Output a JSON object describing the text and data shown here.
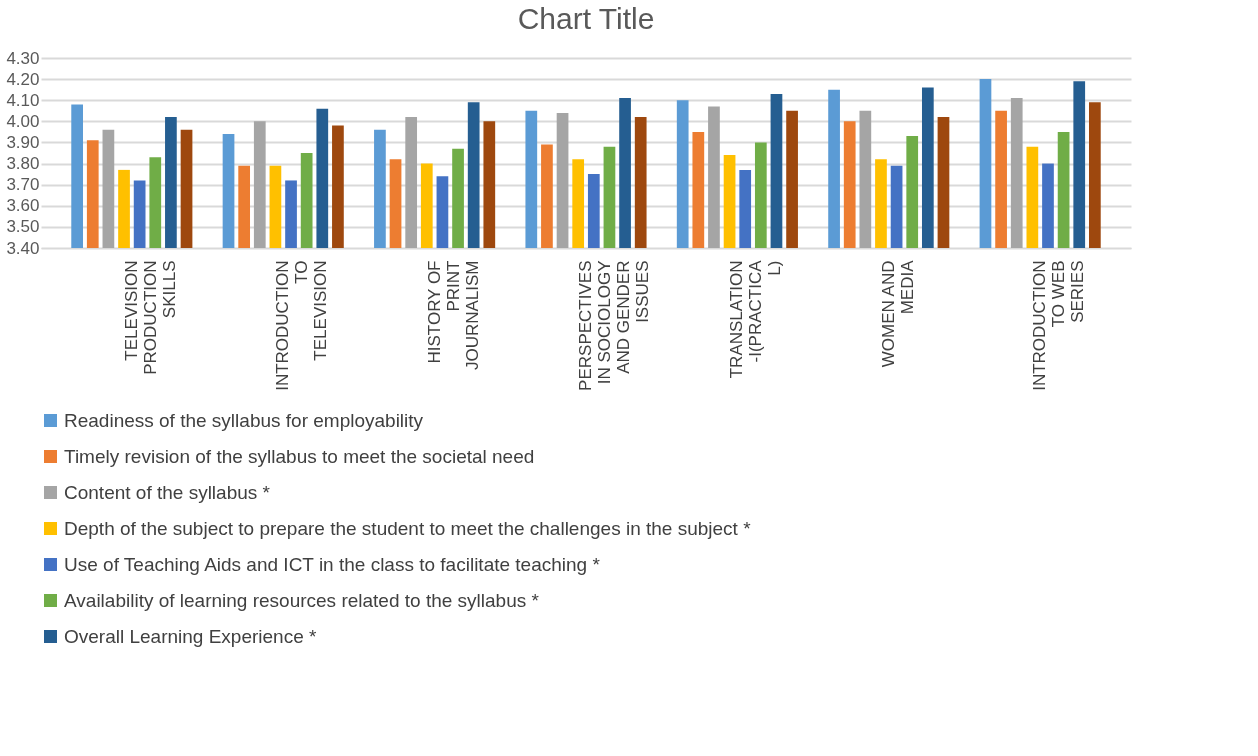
{
  "chart_data": {
    "type": "bar",
    "title": "Chart Title",
    "categories": [
      "TELEVISION PRODUCTION SKILLS",
      "INTRODUCTION TO TELEVISION",
      "HISTORY OF PRINT JOURNALISM",
      "PERSPECTIVES IN SOCIOLOGY AND GENDER ISSUES",
      "TRANSLATION-I(PRACTICAL)",
      "WOMEN AND MEDIA",
      "INTRODUCTION TO WEB SERIES"
    ],
    "series": [
      {
        "name": "Readiness of the syllabus for employability",
        "color": "#5b9bd5",
        "values": [
          4.08,
          3.94,
          3.96,
          4.05,
          4.1,
          4.15,
          4.2
        ]
      },
      {
        "name": "Timely revision of the syllabus to meet the societal need",
        "color": "#ed7d31",
        "values": [
          3.91,
          3.79,
          3.82,
          3.89,
          3.95,
          4.0,
          4.05
        ]
      },
      {
        "name": "Content of the syllabus *",
        "color": "#a5a5a5",
        "values": [
          3.96,
          4.0,
          4.02,
          4.04,
          4.07,
          4.05,
          4.11
        ]
      },
      {
        "name": "Depth of the subject to prepare the student to meet the challenges in the subject *",
        "color": "#ffc000",
        "values": [
          3.77,
          3.79,
          3.8,
          3.82,
          3.84,
          3.82,
          3.88
        ]
      },
      {
        "name": "Use of Teaching Aids and ICT in the class to facilitate teaching *",
        "color": "#4472c4",
        "values": [
          3.72,
          3.72,
          3.74,
          3.75,
          3.77,
          3.79,
          3.8
        ]
      },
      {
        "name": "Availability of learning resources related to the syllabus *",
        "color": "#70ad47",
        "values": [
          3.83,
          3.85,
          3.87,
          3.88,
          3.9,
          3.93,
          3.95
        ]
      },
      {
        "name": "Overall Learning Experience *",
        "color": "#255e91",
        "values": [
          4.02,
          4.06,
          4.09,
          4.11,
          4.13,
          4.16,
          4.19
        ]
      },
      {
        "color": "#9e480e",
        "values": [
          3.96,
          3.98,
          4.0,
          4.02,
          4.05,
          4.02,
          4.09
        ]
      }
    ],
    "ylim": [
      3.4,
      4.3
    ],
    "yticks": [
      {
        "value": 3.4,
        "label": "3.40"
      },
      {
        "value": 3.5,
        "label": "3.50"
      },
      {
        "value": 3.6,
        "label": "3.60"
      },
      {
        "value": 3.7,
        "label": "3.70"
      },
      {
        "value": 3.8,
        "label": "3.80"
      },
      {
        "value": 3.9,
        "label": "3.90"
      },
      {
        "value": 4.0,
        "label": "4.00"
      },
      {
        "value": 4.1,
        "label": "4.10"
      },
      {
        "value": 4.2,
        "label": "4.20"
      },
      {
        "value": 4.3,
        "label": "4.30"
      }
    ],
    "grid": "y",
    "legend": "bottom"
  }
}
